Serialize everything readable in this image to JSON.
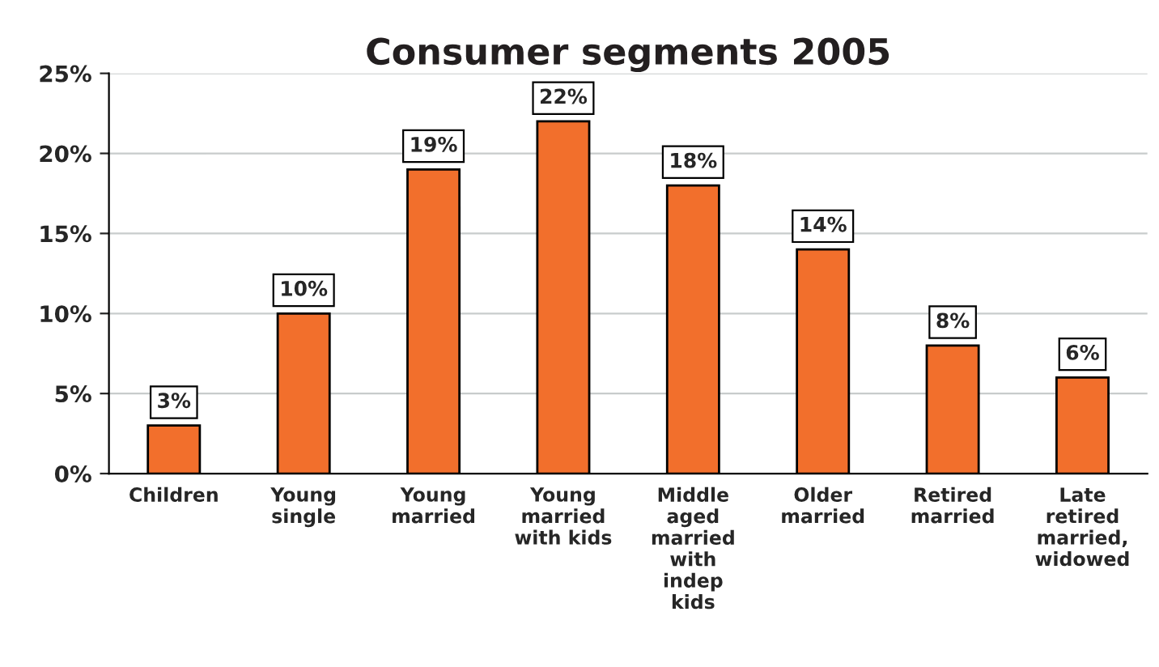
{
  "chart_data": {
    "type": "bar",
    "title": "Consumer segments 2005",
    "categories": [
      "Children",
      "Young\nsingle",
      "Young\nmarried",
      "Young\nmarried\nwith kids",
      "Middle\naged\nmarried\nwith\nindep\nkids",
      "Older\nmarried",
      "Retired\nmarried",
      "Late\nretired\nmarried,\nwidowed"
    ],
    "values": [
      3,
      10,
      19,
      22,
      18,
      14,
      8,
      6
    ],
    "color": "#f26f2c",
    "ylim": [
      0,
      25
    ],
    "yticks": [
      {
        "value": 0,
        "label": "0%"
      },
      {
        "value": 5,
        "label": "5%"
      },
      {
        "value": 10,
        "label": "10%"
      },
      {
        "value": 15,
        "label": "15%"
      },
      {
        "value": 20,
        "label": "20%"
      },
      {
        "value": 25,
        "label": "25%"
      }
    ],
    "grid": "y",
    "value_labels": [
      "3%",
      "10%",
      "19%",
      "22%",
      "18%",
      "14%",
      "8%",
      "6%"
    ]
  }
}
